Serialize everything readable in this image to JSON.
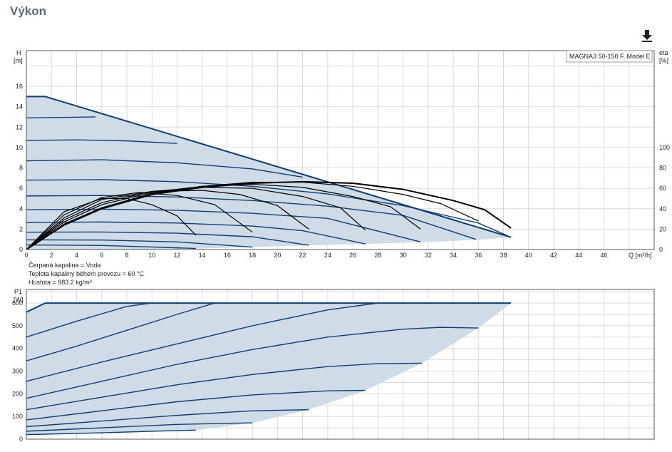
{
  "page": {
    "title": "Výkon",
    "download_icon": "download-icon"
  },
  "notes": {
    "fluid": "Čerpaná kapalina = Voda",
    "temperature": "Teplota kapaliny během provozu = 60 °C",
    "density": "Hustota = 983.2 kg/m³"
  },
  "colors": {
    "envelope": "#cfdbe6",
    "curve": "#103e72",
    "eff_curve": "#000000",
    "grid": "#d9d9d9"
  },
  "chart_data": [
    {
      "type": "line",
      "legend": "MAGNA3 50-150 F, Model E",
      "ylabel_top": "H",
      "ylabel_unit": "[m]",
      "y2label_top": "eta",
      "y2label_unit": "[%]",
      "xlabel": "Q [m³/h]",
      "xlim": [
        0,
        50
      ],
      "ylim": [
        0,
        19.5
      ],
      "y2lim": [
        0,
        195
      ],
      "xticks": [
        0,
        2,
        4,
        6,
        8,
        10,
        12,
        14,
        16,
        18,
        20,
        22,
        24,
        26,
        28,
        30,
        32,
        34,
        36,
        38,
        40,
        42,
        44,
        46
      ],
      "yticks": [
        0,
        2,
        4,
        6,
        8,
        10,
        12,
        14,
        16
      ],
      "y2ticks": [
        0,
        20,
        40,
        60,
        80,
        100
      ],
      "grid": true,
      "envelope": [
        [
          0,
          15
        ],
        [
          1.5,
          15
        ],
        [
          38.6,
          1.2
        ],
        [
          36,
          0.95
        ],
        [
          31.5,
          0.72
        ],
        [
          27,
          0.55
        ],
        [
          22.5,
          0.4
        ],
        [
          18,
          0.24
        ],
        [
          13.5,
          0.1
        ],
        [
          9,
          0.03
        ],
        [
          0,
          0
        ]
      ],
      "h_curves": [
        {
          "name": "speed 1",
          "points": [
            [
              0,
              15
            ],
            [
              1.5,
              15
            ],
            [
              38.6,
              1.2
            ]
          ]
        },
        {
          "name": "speed 2",
          "points": [
            [
              0,
              12.9
            ],
            [
              5.5,
              13.0
            ]
          ]
        },
        {
          "name": "speed 3",
          "points": [
            [
              0,
              10.7
            ],
            [
              4,
              10.75
            ],
            [
              8,
              10.65
            ],
            [
              12,
              10.4
            ]
          ]
        },
        {
          "name": "speed 4",
          "points": [
            [
              0,
              8.7
            ],
            [
              6,
              8.8
            ],
            [
              12,
              8.5
            ],
            [
              18,
              7.9
            ],
            [
              22,
              7.1
            ]
          ]
        },
        {
          "name": "speed 5",
          "points": [
            [
              0,
              6.8
            ],
            [
              6,
              6.85
            ],
            [
              12,
              6.65
            ],
            [
              18,
              6.2
            ],
            [
              24,
              5.45
            ],
            [
              30,
              4.3
            ],
            [
              36,
              2.6
            ],
            [
              38.6,
              1.2
            ]
          ]
        },
        {
          "name": "speed 6",
          "points": [
            [
              0,
              5.25
            ],
            [
              6,
              5.3
            ],
            [
              12,
              5.15
            ],
            [
              18,
              4.8
            ],
            [
              24,
              4.25
            ],
            [
              30,
              3.35
            ],
            [
              35.8,
              1.0
            ]
          ]
        },
        {
          "name": "speed 7",
          "points": [
            [
              0,
              3.9
            ],
            [
              6,
              3.95
            ],
            [
              12,
              3.85
            ],
            [
              18,
              3.55
            ],
            [
              24,
              3.05
            ],
            [
              31.4,
              0.75
            ]
          ]
        },
        {
          "name": "speed 8",
          "points": [
            [
              0,
              2.65
            ],
            [
              6,
              2.7
            ],
            [
              12,
              2.6
            ],
            [
              18,
              2.3
            ],
            [
              22,
              1.85
            ],
            [
              27,
              0.55
            ]
          ]
        },
        {
          "name": "speed 9",
          "points": [
            [
              0,
              1.7
            ],
            [
              6,
              1.72
            ],
            [
              12,
              1.6
            ],
            [
              18,
              1.25
            ],
            [
              22.5,
              0.42
            ]
          ]
        },
        {
          "name": "speed 10",
          "points": [
            [
              0,
              0.95
            ],
            [
              6,
              0.93
            ],
            [
              12,
              0.75
            ],
            [
              18,
              0.24
            ]
          ]
        },
        {
          "name": "speed 11",
          "points": [
            [
              0,
              0.45
            ],
            [
              6,
              0.4
            ],
            [
              10,
              0.25
            ],
            [
              13.5,
              0.1
            ]
          ]
        }
      ],
      "eta_curves": [
        {
          "name": "eta 1",
          "points": [
            [
              0,
              0
            ],
            [
              3,
              24
            ],
            [
              6,
              40
            ],
            [
              10,
              54
            ],
            [
              14,
              61
            ],
            [
              18,
              65
            ],
            [
              22,
              66.5
            ],
            [
              26,
              65
            ],
            [
              30,
              59
            ],
            [
              34,
              48
            ],
            [
              36.5,
              39
            ],
            [
              38.6,
              21
            ]
          ]
        },
        {
          "name": "eta 2",
          "points": [
            [
              0,
              0
            ],
            [
              3,
              25
            ],
            [
              6,
              41
            ],
            [
              10,
              55
            ],
            [
              14,
              62
            ],
            [
              18,
              66
            ],
            [
              22,
              66
            ],
            [
              26,
              62
            ],
            [
              30,
              54
            ],
            [
              33,
              45
            ],
            [
              36,
              28
            ]
          ]
        },
        {
          "name": "eta 3",
          "points": [
            [
              0,
              0
            ],
            [
              3,
              27
            ],
            [
              6,
              44
            ],
            [
              10,
              56
            ],
            [
              14,
              62
            ],
            [
              18,
              64
            ],
            [
              22,
              61
            ],
            [
              26,
              52
            ],
            [
              29,
              42
            ],
            [
              31.4,
              20
            ]
          ]
        },
        {
          "name": "eta 4",
          "points": [
            [
              0,
              0
            ],
            [
              3,
              29
            ],
            [
              6,
              46
            ],
            [
              10,
              57
            ],
            [
              14,
              61
            ],
            [
              18,
              60
            ],
            [
              22,
              52
            ],
            [
              25,
              41
            ],
            [
              27,
              19
            ]
          ]
        },
        {
          "name": "eta 5",
          "points": [
            [
              0,
              0
            ],
            [
              3,
              31
            ],
            [
              6,
              49
            ],
            [
              10,
              57
            ],
            [
              14,
              58
            ],
            [
              17,
              54
            ],
            [
              20,
              43
            ],
            [
              22.5,
              20
            ]
          ]
        },
        {
          "name": "eta 6",
          "points": [
            [
              0,
              0
            ],
            [
              3,
              34
            ],
            [
              6,
              51
            ],
            [
              9,
              56
            ],
            [
              12,
              53
            ],
            [
              15,
              44
            ],
            [
              18,
              17
            ]
          ]
        },
        {
          "name": "eta 7",
          "points": [
            [
              0,
              0
            ],
            [
              3,
              37
            ],
            [
              6,
              50
            ],
            [
              8,
              50
            ],
            [
              10,
              44
            ],
            [
              12,
              33
            ],
            [
              13.5,
              14
            ]
          ]
        }
      ]
    },
    {
      "type": "line",
      "ylabel_top": "P1",
      "ylabel_unit": "[W]",
      "xlim": [
        0,
        50
      ],
      "ylim": [
        0,
        660
      ],
      "yticks": [
        0,
        100,
        200,
        300,
        400,
        500,
        600
      ],
      "grid": true,
      "envelope": [
        [
          0,
          560
        ],
        [
          1.5,
          600
        ],
        [
          38.6,
          600
        ],
        [
          36,
          490
        ],
        [
          31.5,
          335
        ],
        [
          27,
          215
        ],
        [
          22.5,
          130
        ],
        [
          18,
          72
        ],
        [
          13.5,
          40
        ],
        [
          0,
          20
        ]
      ],
      "p_curves": [
        {
          "name": "power 1",
          "points": [
            [
              0,
              560
            ],
            [
              1.5,
              600
            ],
            [
              38.6,
              600
            ]
          ]
        },
        {
          "name": "power 2",
          "points": [
            [
              0,
              450
            ],
            [
              4,
              520
            ],
            [
              8,
              585
            ],
            [
              10,
              600
            ]
          ]
        },
        {
          "name": "power 3",
          "points": [
            [
              0,
              345
            ],
            [
              4,
              410
            ],
            [
              8,
              480
            ],
            [
              12,
              550
            ],
            [
              15,
              600
            ]
          ]
        },
        {
          "name": "power 4",
          "points": [
            [
              0,
              255
            ],
            [
              6,
              340
            ],
            [
              12,
              420
            ],
            [
              18,
              500
            ],
            [
              24,
              570
            ],
            [
              28,
              600
            ]
          ]
        },
        {
          "name": "power 5",
          "points": [
            [
              0,
              180
            ],
            [
              6,
              255
            ],
            [
              12,
              330
            ],
            [
              18,
              395
            ],
            [
              24,
              450
            ],
            [
              30,
              485
            ],
            [
              33,
              493
            ],
            [
              36,
              490
            ]
          ]
        },
        {
          "name": "power 6",
          "points": [
            [
              0,
              130
            ],
            [
              6,
              185
            ],
            [
              12,
              240
            ],
            [
              18,
              285
            ],
            [
              24,
              320
            ],
            [
              28,
              333
            ],
            [
              31.5,
              335
            ]
          ]
        },
        {
          "name": "power 7",
          "points": [
            [
              0,
              85
            ],
            [
              6,
              125
            ],
            [
              12,
              165
            ],
            [
              18,
              195
            ],
            [
              24,
              213
            ],
            [
              27,
              215
            ]
          ]
        },
        {
          "name": "power 8",
          "points": [
            [
              0,
              55
            ],
            [
              6,
              80
            ],
            [
              12,
              105
            ],
            [
              18,
              125
            ],
            [
              22.5,
              130
            ]
          ]
        },
        {
          "name": "power 9",
          "points": [
            [
              0,
              35
            ],
            [
              6,
              50
            ],
            [
              12,
              65
            ],
            [
              18,
              72
            ]
          ]
        },
        {
          "name": "power 10",
          "points": [
            [
              0,
              20
            ],
            [
              6,
              28
            ],
            [
              10,
              35
            ],
            [
              13.5,
              40
            ]
          ]
        }
      ]
    }
  ]
}
